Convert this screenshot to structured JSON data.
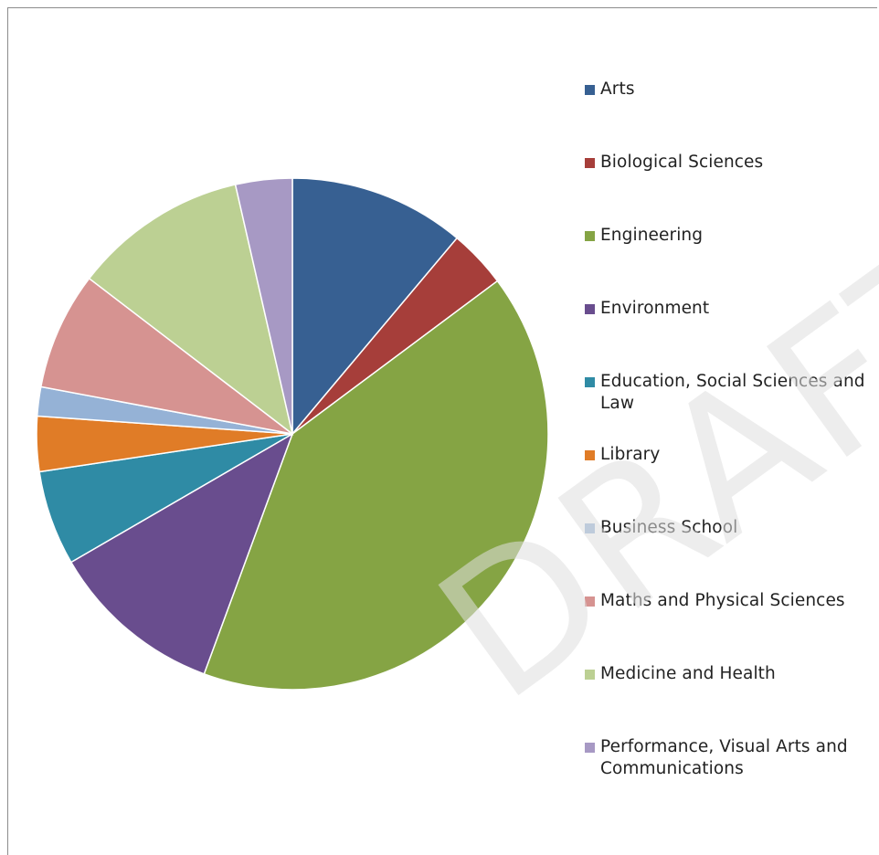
{
  "chart_data": {
    "type": "pie",
    "title": "",
    "start_angle_deg": 0,
    "direction": "clockwise",
    "slices": [
      {
        "label": "Arts",
        "value": 11.5,
        "color": "#376092"
      },
      {
        "label": "Biological Sciences",
        "value": 3.8,
        "color": "#a63e3a"
      },
      {
        "label": "Engineering",
        "value": 42.2,
        "color": "#85a444"
      },
      {
        "label": "Environment",
        "value": 11.4,
        "color": "#694d8e"
      },
      {
        "label": "Education, Social Sciences and Law",
        "value": 6.2,
        "color": "#2f8ba5"
      },
      {
        "label": "Library",
        "value": 3.6,
        "color": "#e07c27"
      },
      {
        "label": "Business School",
        "value": 1.9,
        "color": "#95b2d6"
      },
      {
        "label": "Maths and Physical Sciences",
        "value": 7.7,
        "color": "#d69391"
      },
      {
        "label": "Medicine and Health",
        "value": 11.4,
        "color": "#bcd093"
      },
      {
        "label": "Performance, Visual Arts and Communications",
        "value": 3.7,
        "color": "#a799c4"
      }
    ],
    "legend_position": "right"
  },
  "legend": [
    {
      "label": "Arts",
      "color": "#376092"
    },
    {
      "label": "Biological Sciences",
      "color": "#a63e3a"
    },
    {
      "label": "Engineering",
      "color": "#85a444"
    },
    {
      "label": "Environment",
      "color": "#694d8e"
    },
    {
      "label": "Education, Social Sciences and Law",
      "color": "#2f8ba5"
    },
    {
      "label": "Library",
      "color": "#e07c27"
    },
    {
      "label": "Business School",
      "color": "#95b2d6"
    },
    {
      "label": "Maths and Physical Sciences",
      "color": "#d69391"
    },
    {
      "label": "Medicine and Health",
      "color": "#bcd093"
    },
    {
      "label": "Performance, Visual Arts and Communications",
      "color": "#a799c4"
    }
  ],
  "watermark": "DRAFT"
}
